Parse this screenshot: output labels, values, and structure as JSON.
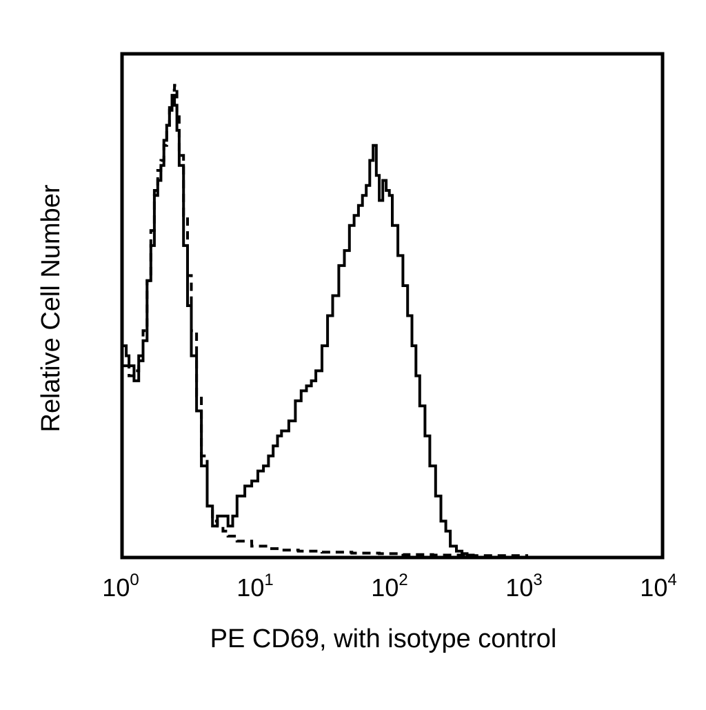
{
  "chart_data": {
    "type": "area",
    "title": "",
    "xlabel": "PE CD69, with isotype control",
    "ylabel": "Relative Cell Number",
    "x_scale": "log",
    "xlim": [
      1,
      10000
    ],
    "ylim": [
      0,
      100
    ],
    "grid": false,
    "legend": "none",
    "x_ticks": [
      {
        "base": "10",
        "exp": "0",
        "value": 1
      },
      {
        "base": "10",
        "exp": "1",
        "value": 10
      },
      {
        "base": "10",
        "exp": "2",
        "value": 100
      },
      {
        "base": "10",
        "exp": "3",
        "value": 1000
      },
      {
        "base": "10",
        "exp": "4",
        "value": 10000
      }
    ],
    "series": [
      {
        "style": "solid",
        "color": "#000000",
        "x": [
          1.0,
          1.05,
          1.1,
          1.2,
          1.3,
          1.4,
          1.5,
          1.6,
          1.7,
          1.8,
          1.9,
          2.0,
          2.1,
          2.2,
          2.3,
          2.4,
          2.5,
          2.6,
          2.8,
          3.0,
          3.2,
          3.5,
          3.8,
          4.2,
          4.6,
          5.0,
          5.5,
          6.0,
          6.5,
          7.0,
          8.0,
          9.0,
          10.0,
          11.0,
          12.0,
          13.0,
          14.0,
          15.0,
          17.0,
          19.0,
          21.0,
          23.0,
          25.0,
          27.0,
          30.0,
          33.0,
          36.0,
          40.0,
          44.0,
          48.0,
          52.0,
          56.0,
          60.0,
          64.0,
          68.0,
          72.0,
          76.0,
          80.0,
          85.0,
          90.0,
          95.0,
          100.0,
          110.0,
          120.0,
          130.0,
          140.0,
          150.0,
          160.0,
          175.0,
          190.0,
          210.0,
          230.0,
          250.0,
          270.0,
          300.0,
          330.0,
          360.0,
          400.0
        ],
        "y": [
          42,
          40,
          38,
          35,
          39,
          43,
          55,
          62,
          72,
          75,
          78,
          83,
          86,
          89,
          92,
          90,
          85,
          78,
          62,
          50,
          40,
          29,
          18,
          10,
          6,
          8,
          8,
          6,
          8,
          12,
          14,
          15,
          17,
          18,
          20,
          22,
          24,
          25,
          27,
          31,
          33,
          34,
          35,
          37,
          42,
          48,
          52,
          58,
          61,
          66,
          68,
          70,
          72,
          74,
          79,
          82,
          76,
          71,
          75,
          73,
          72,
          66,
          60,
          54,
          48,
          42,
          36,
          30,
          24,
          18,
          12,
          7,
          5,
          2,
          1,
          0.5,
          0.2,
          0
        ]
      },
      {
        "style": "dashed",
        "color": "#000000",
        "x": [
          1.0,
          1.1,
          1.2,
          1.3,
          1.4,
          1.5,
          1.6,
          1.7,
          1.8,
          1.9,
          2.0,
          2.1,
          2.2,
          2.3,
          2.4,
          2.5,
          2.6,
          2.8,
          3.0,
          3.2,
          3.5,
          3.8,
          4.2,
          4.6,
          5.0,
          5.5,
          6.0,
          7.0,
          8.0,
          9.0,
          10.0,
          12.0,
          15.0,
          20.0,
          30.0,
          50.0,
          80.0,
          120.0,
          200.0,
          400.0,
          1000.0
        ],
        "y": [
          38,
          36,
          37,
          40,
          45,
          55,
          65,
          73,
          77,
          79,
          82,
          86,
          90,
          93,
          94,
          88,
          80,
          68,
          56,
          45,
          32,
          20,
          10,
          7,
          6,
          5,
          4,
          3,
          3,
          2,
          2,
          1.5,
          1.2,
          1,
          0.8,
          0.6,
          0.5,
          0.3,
          0.2,
          0.1,
          0
        ]
      }
    ]
  }
}
